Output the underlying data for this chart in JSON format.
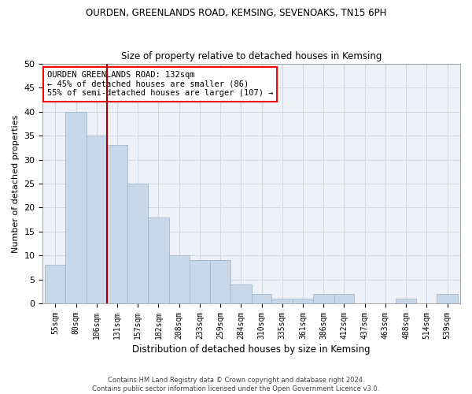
{
  "title1": "OURDEN, GREENLANDS ROAD, KEMSING, SEVENOAKS, TN15 6PH",
  "title2": "Size of property relative to detached houses in Kemsing",
  "xlabel": "Distribution of detached houses by size in Kemsing",
  "ylabel": "Number of detached properties",
  "footer1": "Contains HM Land Registry data © Crown copyright and database right 2024.",
  "footer2": "Contains public sector information licensed under the Open Government Licence v3.0.",
  "annotation_title": "OURDEN GREENLANDS ROAD: 132sqm",
  "annotation_line2": "← 45% of detached houses are smaller (86)",
  "annotation_line3": "55% of semi-detached houses are larger (107) →",
  "bar_edges": [
    55,
    80,
    106,
    131,
    157,
    182,
    208,
    233,
    259,
    284,
    310,
    335,
    361,
    386,
    412,
    437,
    463,
    488,
    514,
    539,
    565
  ],
  "bar_heights": [
    8,
    40,
    35,
    33,
    25,
    18,
    10,
    9,
    9,
    4,
    2,
    1,
    1,
    2,
    2,
    0,
    0,
    1,
    0,
    2,
    0
  ],
  "bar_color": "#c8d8e8",
  "bar_edge_color": "#a0b8cc",
  "grid_color": "#d0d8e8",
  "bg_color": "#eef2f8",
  "vline_color": "#aa0000",
  "vline_x": 131,
  "ylim": [
    0,
    50
  ],
  "yticks": [
    0,
    5,
    10,
    15,
    20,
    25,
    30,
    35,
    40,
    45,
    50
  ]
}
